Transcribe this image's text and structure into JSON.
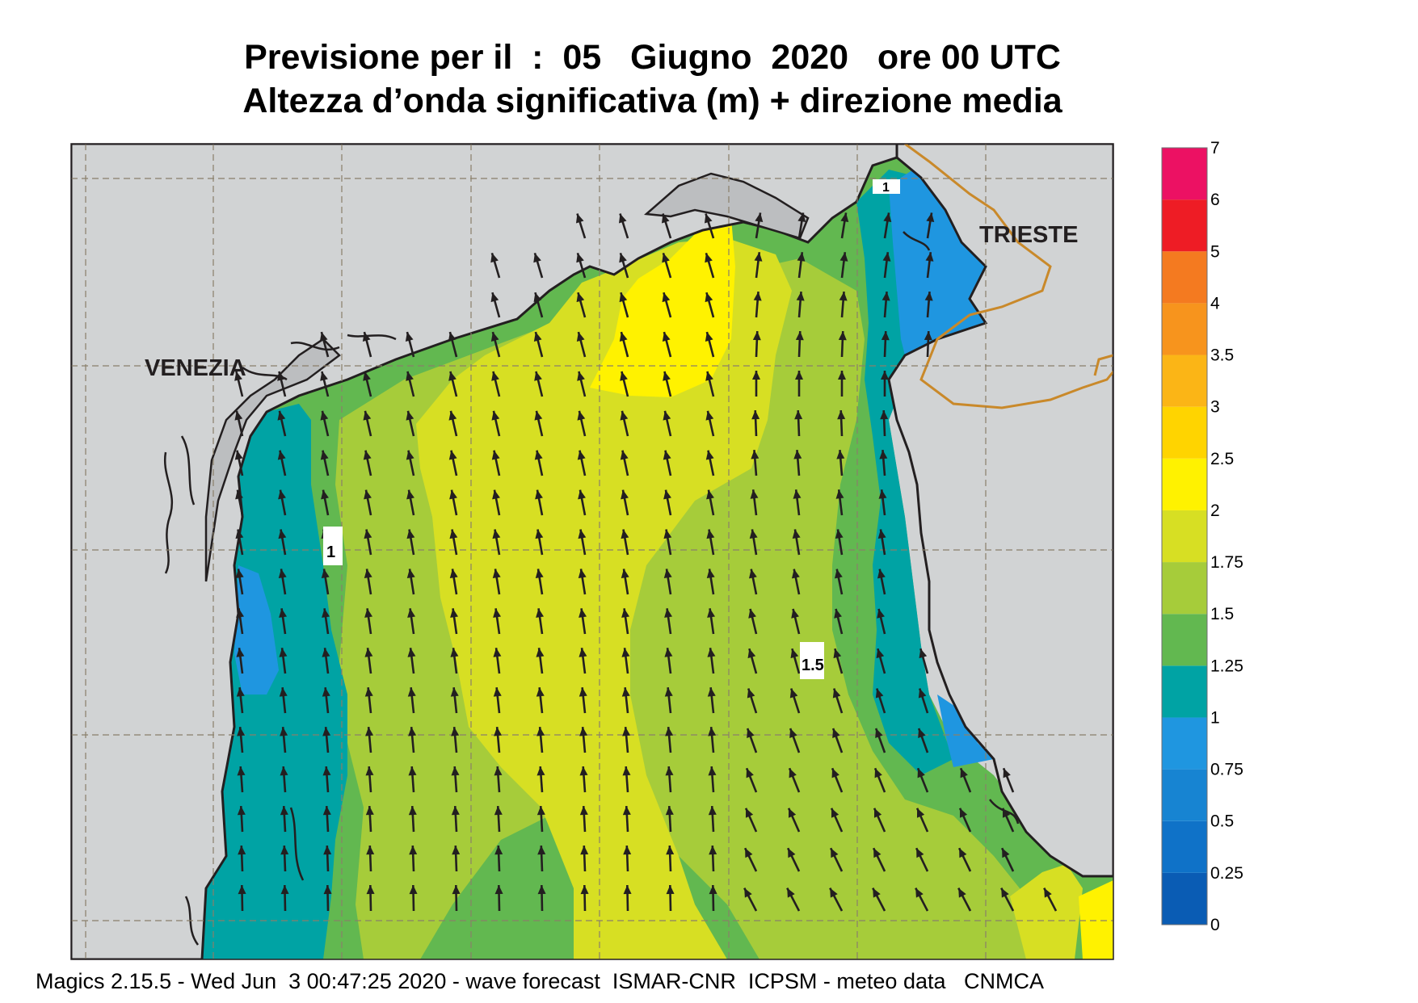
{
  "title": {
    "line1": "Previsione per il  :  05   Giugno  2020   ore 00 UTC",
    "line2": "Altezza d’onda significativa (m) + direzione media"
  },
  "footer": "Magics 2.15.5 - Wed Jun  3 00:47:25 2020 - wave forecast  ISMAR-CNR  ICPSM - meteo data   CNMCA",
  "places": [
    {
      "name": "VENEZIA"
    },
    {
      "name": "TRIESTE"
    }
  ],
  "legend": {
    "levels": [
      "0",
      "0.25",
      "0.5",
      "0.75",
      "1",
      "1.25",
      "1.5",
      "1.75",
      "2",
      "2.5",
      "3",
      "3.5",
      "4",
      "5",
      "6",
      "7"
    ],
    "colors": [
      "#0a5cb4",
      "#0f72c8",
      "#1784d2",
      "#1f96e0",
      "#00a3a4",
      "#62b850",
      "#a6cc3a",
      "#d7df23",
      "#fff200",
      "#ffd400",
      "#fbb516",
      "#f7941d",
      "#f47a20",
      "#ee1c25",
      "#ec1163"
    ]
  },
  "colors": {
    "land": "#d1d3d4",
    "lagoon_land": "#bcbec0",
    "coast": "#231f20",
    "grid": "#8a7f6a",
    "border": "#c9892a",
    "arrow": "#231f20"
  },
  "station_labels": [
    "1",
    "1",
    "1.5"
  ]
}
